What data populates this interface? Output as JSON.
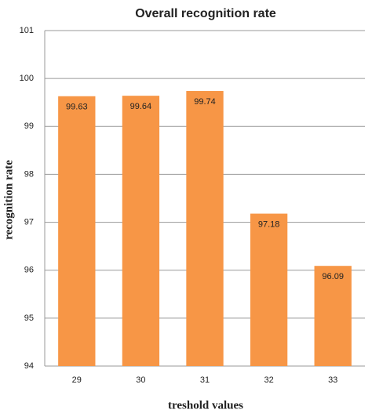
{
  "chart_data": {
    "type": "bar",
    "title": "Overall recognition rate",
    "x_label": "treshold values",
    "y_label": "recognition rate",
    "categories": [
      "29",
      "30",
      "31",
      "32",
      "33"
    ],
    "values": [
      99.63,
      99.64,
      99.74,
      97.18,
      96.09
    ],
    "color": "#f79646",
    "ylim": [
      94,
      101
    ],
    "yticks": [
      94,
      95,
      96,
      97,
      98,
      99,
      100,
      101
    ],
    "grid": true
  }
}
